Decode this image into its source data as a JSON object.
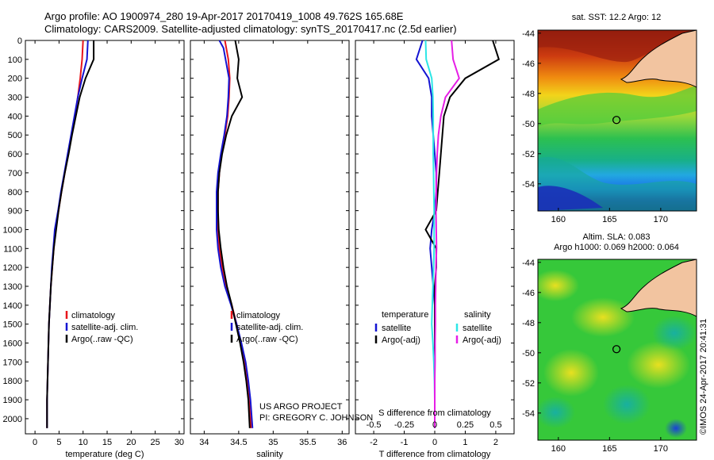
{
  "header": {
    "line1": "Argo profile: AO 1900974_280 19-Apr-2017 20170419_1008 49.762S 165.68E",
    "line2": "Climatology: CARS2009. Satellite-adjusted climatology: synTS_20170417.nc (2.5d earlier)"
  },
  "credits": {
    "project": "US ARGO PROJECT",
    "pi": "PI: GREGORY C. JOHNSON",
    "stamp": "©IMOS 24-Apr-2017 20:41:31"
  },
  "colors": {
    "climatology": "#e8151b",
    "satellite": "#1414d2",
    "argo": "#000000",
    "sat_s": "#2de6e6",
    "argo_s": "#e61ee6",
    "land": "#f2c4a0"
  },
  "chart_data": [
    {
      "type": "line",
      "id": "temperature",
      "xlabel": "temperature (deg C)",
      "xlim": [
        -2,
        31
      ],
      "xticks": [
        "0",
        "5",
        "10",
        "15",
        "20",
        "25",
        "30"
      ],
      "xtick_values": [
        0,
        5,
        10,
        15,
        20,
        25,
        30
      ],
      "ylim": [
        2080,
        0
      ],
      "yticks": [
        "0",
        "100",
        "200",
        "300",
        "400",
        "500",
        "600",
        "700",
        "800",
        "900",
        "1000",
        "1100",
        "1200",
        "1300",
        "1400",
        "1500",
        "1600",
        "1700",
        "1800",
        "1900",
        "2000"
      ],
      "ytick_values": [
        0,
        100,
        200,
        300,
        400,
        500,
        600,
        700,
        800,
        900,
        1000,
        1100,
        1200,
        1300,
        1400,
        1500,
        1600,
        1700,
        1800,
        1900,
        2000
      ],
      "legend": [
        "climatology",
        "satellite-adj. clim.",
        "Argo(..raw -QC)"
      ],
      "series": [
        {
          "name": "climatology",
          "color": "#e8151b",
          "x": [
            10,
            9.8,
            9.4,
            8.9,
            8.3,
            7.6,
            6.9,
            6.2,
            5.5,
            4.9,
            4.3,
            3.9,
            3.6,
            3.3,
            3.1,
            2.9,
            2.8,
            2.7,
            2.6,
            2.5,
            2.5
          ],
          "y": [
            0,
            100,
            200,
            300,
            400,
            500,
            600,
            700,
            800,
            900,
            1000,
            1100,
            1200,
            1300,
            1400,
            1500,
            1600,
            1700,
            1800,
            1900,
            2050
          ]
        },
        {
          "name": "satellite-adj. clim.",
          "color": "#1414d2",
          "x": [
            11,
            10.8,
            9.8,
            8.9,
            8.2,
            7.5,
            6.8,
            6.1,
            5.4,
            4.8,
            4.1,
            3.8,
            3.5,
            3.3,
            3.1,
            2.9,
            2.8,
            2.7,
            2.6,
            2.5,
            2.5
          ],
          "y": [
            0,
            100,
            200,
            300,
            400,
            500,
            600,
            700,
            800,
            900,
            1000,
            1100,
            1200,
            1300,
            1400,
            1500,
            1600,
            1700,
            1800,
            1900,
            2050
          ]
        },
        {
          "name": "Argo(..raw -QC)",
          "color": "#000000",
          "x": [
            12.2,
            12.2,
            10.5,
            9.3,
            8.5,
            7.7,
            7.0,
            6.2,
            5.5,
            4.9,
            4.4,
            3.9,
            3.6,
            3.3,
            3.1,
            2.9,
            2.8,
            2.7,
            2.6,
            2.5,
            2.5
          ],
          "y": [
            0,
            100,
            200,
            300,
            400,
            500,
            600,
            700,
            800,
            900,
            1000,
            1100,
            1200,
            1300,
            1400,
            1500,
            1600,
            1700,
            1800,
            1900,
            2050
          ]
        }
      ]
    },
    {
      "type": "line",
      "id": "salinity",
      "xlabel": "salinity",
      "xlim": [
        33.8,
        36.1
      ],
      "xticks": [
        "34",
        "34.5",
        "35",
        "35.5",
        "36"
      ],
      "xtick_values": [
        34,
        34.5,
        35,
        35.5,
        36
      ],
      "ylim": [
        2080,
        0
      ],
      "legend": [
        "climatology",
        "satellite-adj. clim.",
        "Argo(..raw -QC)"
      ],
      "series": [
        {
          "name": "climatology",
          "color": "#e8151b",
          "x": [
            34.3,
            34.35,
            34.37,
            34.36,
            34.34,
            34.3,
            34.25,
            34.22,
            34.2,
            34.2,
            34.2,
            34.22,
            34.26,
            34.32,
            34.4,
            34.47,
            34.53,
            34.58,
            34.62,
            34.65,
            34.68
          ],
          "y": [
            0,
            100,
            200,
            300,
            400,
            500,
            600,
            700,
            800,
            900,
            1000,
            1100,
            1200,
            1300,
            1400,
            1500,
            1600,
            1700,
            1800,
            1900,
            2050
          ]
        },
        {
          "name": "satellite-adj. clim.",
          "color": "#1414d2",
          "x": [
            34.22,
            34.28,
            34.36,
            34.35,
            34.33,
            34.29,
            34.24,
            34.2,
            34.18,
            34.18,
            34.18,
            34.2,
            34.24,
            34.3,
            34.39,
            34.47,
            34.54,
            34.6,
            34.64,
            34.67,
            34.7
          ],
          "y": [
            0,
            40,
            200,
            300,
            400,
            500,
            600,
            700,
            800,
            900,
            1000,
            1100,
            1200,
            1300,
            1400,
            1500,
            1600,
            1700,
            1800,
            1900,
            2050
          ]
        },
        {
          "name": "Argo(..raw -QC)",
          "color": "#000000",
          "x": [
            34.45,
            34.5,
            34.48,
            34.55,
            34.4,
            34.32,
            34.26,
            34.22,
            34.2,
            34.2,
            34.21,
            34.24,
            34.28,
            34.33,
            34.4,
            34.46,
            34.52,
            34.57,
            34.61,
            34.64,
            34.66
          ],
          "y": [
            0,
            100,
            200,
            300,
            400,
            500,
            600,
            700,
            800,
            900,
            1000,
            1100,
            1200,
            1300,
            1400,
            1500,
            1600,
            1700,
            1800,
            1900,
            2050
          ]
        }
      ]
    },
    {
      "type": "line",
      "id": "difference",
      "xlabel": "T difference from climatology",
      "xlabel2": "S difference from climatology",
      "xlim": [
        -2.6,
        2.6
      ],
      "xticks": [
        "-2",
        "-1",
        "0",
        "1",
        "2"
      ],
      "xtick_values": [
        -2,
        -1,
        0,
        1,
        2
      ],
      "xticks2": [
        "-0.5",
        "-0.25",
        "0",
        "0.25",
        "0.5"
      ],
      "xtick2_values": [
        -0.5,
        -0.25,
        0,
        0.25,
        0.5
      ],
      "ylim": [
        2080,
        0
      ],
      "legend": {
        "temperature_title": "temperature",
        "salinity_title": "salinity",
        "items": [
          "satellite",
          "Argo(-adj)",
          "satellite",
          "Argo(-adj)"
        ]
      },
      "series": [
        {
          "name": "satellite",
          "color": "#1414d2",
          "x": [
            -0.4,
            -0.6,
            -0.2,
            -0.1,
            -0.1,
            -0.05,
            0,
            0.05,
            0.05,
            0,
            -0.1,
            -0.15,
            -0.1,
            -0.05,
            0,
            0,
            0,
            0,
            0,
            0,
            0
          ],
          "y": [
            0,
            100,
            200,
            300,
            400,
            500,
            600,
            700,
            800,
            900,
            1000,
            1100,
            1200,
            1300,
            1400,
            1500,
            1600,
            1700,
            1800,
            1900,
            2050
          ]
        },
        {
          "name": "Argo(-adj)",
          "color": "#000000",
          "x": [
            1.9,
            2.1,
            1.0,
            0.5,
            0.3,
            0.25,
            0.2,
            0.15,
            0.1,
            0.05,
            -0.3,
            0.05,
            0.05,
            0,
            0,
            0,
            0,
            0,
            0,
            0,
            0
          ],
          "y": [
            0,
            100,
            200,
            300,
            400,
            500,
            600,
            700,
            800,
            900,
            1000,
            1100,
            1200,
            1300,
            1400,
            1500,
            1600,
            1700,
            1800,
            1900,
            2050
          ]
        },
        {
          "name": "satellite",
          "color": "#2de6e6",
          "x": [
            -0.3,
            -0.28,
            -0.1,
            -0.06,
            -0.05,
            -0.05,
            -0.05,
            -0.04,
            -0.03,
            -0.02,
            -0.02,
            -0.02,
            -0.04,
            -0.06,
            -0.08,
            -0.1,
            -0.06,
            -0.03,
            -0.01,
            0,
            0
          ],
          "y": [
            0,
            100,
            200,
            300,
            400,
            500,
            600,
            700,
            800,
            900,
            1000,
            1100,
            1200,
            1300,
            1400,
            1500,
            1600,
            1700,
            1800,
            1900,
            2050
          ]
        },
        {
          "name": "Argo(-adj)",
          "color": "#e61ee6",
          "x": [
            0.55,
            0.6,
            0.8,
            0.35,
            0.2,
            0.12,
            0.08,
            0.06,
            0.05,
            0.04,
            0.05,
            0.06,
            0.04,
            0.03,
            0.02,
            0.02,
            0.01,
            0.01,
            0,
            0,
            0
          ],
          "y": [
            0,
            100,
            200,
            300,
            400,
            500,
            600,
            700,
            800,
            900,
            1000,
            1100,
            1200,
            1300,
            1400,
            1500,
            1600,
            1700,
            1800,
            1900,
            2050
          ]
        }
      ]
    },
    {
      "type": "heatmap",
      "id": "sst_map",
      "title": "sat. SST: 12.2 Argo: 12",
      "xticks": [
        "160",
        "165",
        "170"
      ],
      "xtick_values": [
        160,
        165,
        170
      ],
      "yticks": [
        "-44",
        "-46",
        "-48",
        "-50",
        "-52",
        "-54"
      ],
      "ytick_values": [
        -44,
        -46,
        -48,
        -50,
        -52,
        -54
      ],
      "xlim": [
        158,
        173.5
      ],
      "ylim": [
        -55.8,
        -43.8
      ],
      "float_position": [
        165.68,
        -49.762
      ]
    },
    {
      "type": "heatmap",
      "id": "sla_map",
      "title": "Altim. SLA: 0.083",
      "subtitle": "Argo h1000: 0.069 h2000: 0.064",
      "xticks": [
        "160",
        "165",
        "170"
      ],
      "xtick_values": [
        160,
        165,
        170
      ],
      "yticks": [
        "-44",
        "-46",
        "-48",
        "-50",
        "-52",
        "-54"
      ],
      "ytick_values": [
        -44,
        -46,
        -48,
        -50,
        -52,
        -54
      ],
      "xlim": [
        158,
        173.5
      ],
      "ylim": [
        -55.8,
        -43.8
      ],
      "float_position": [
        165.68,
        -49.762
      ]
    }
  ]
}
